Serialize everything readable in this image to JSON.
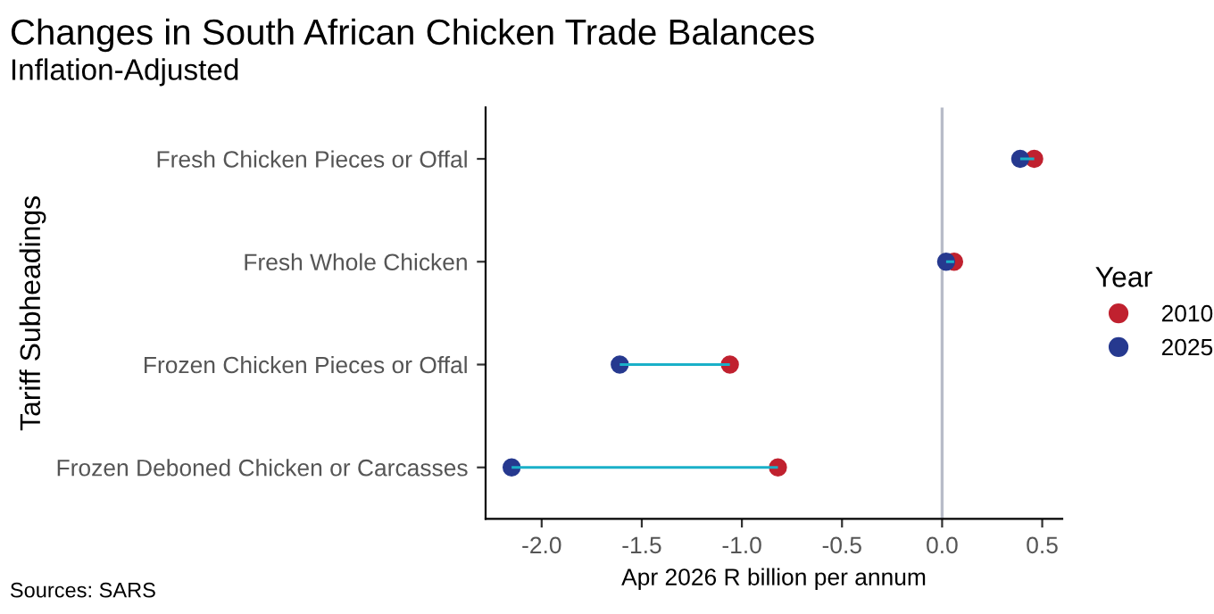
{
  "chart_data": {
    "type": "scatter",
    "orientation": "horizontal",
    "title": "Changes in South African Chicken Trade Balances",
    "subtitle": "Inflation-Adjusted",
    "xlabel": "Apr 2026 R billion per annum",
    "ylabel": "Tariff Subheadings",
    "legend_title": "Year",
    "legend": "right",
    "marker": "circle",
    "grid": false,
    "categories": [
      "Fresh Chicken Pieces or Offal",
      "Fresh Whole Chicken",
      "Frozen Chicken Pieces or Offal",
      "Frozen Deboned Chicken or Carcasses"
    ],
    "series": [
      {
        "type": "bar",
        "color": "#1ab0c8",
        "base": [
          0.39,
          0.02,
          -1.61,
          -2.15
        ],
        "values": [
          0.07,
          0.04,
          0.55,
          1.33
        ]
      },
      {
        "name": "2010",
        "color": "#c0212f",
        "values": [
          0.46,
          0.06,
          -1.06,
          -0.82
        ]
      },
      {
        "name": "2025",
        "color": "#26398f",
        "values": [
          0.39,
          0.02,
          -1.61,
          -2.15
        ]
      }
    ],
    "xlim": [
      -2.28,
      0.6
    ],
    "xticks": [
      {
        "value": -2.0,
        "label": "-2.0"
      },
      {
        "value": -1.5,
        "label": "-1.5"
      },
      {
        "value": -1.0,
        "label": "-1.0"
      },
      {
        "value": -0.5,
        "label": "-0.5"
      },
      {
        "value": 0.0,
        "label": "0.0"
      },
      {
        "value": 0.5,
        "label": "0.5"
      }
    ],
    "ref_lines": [
      {
        "axis": "x",
        "value": 0,
        "color": "#b8bcc8"
      }
    ],
    "annotations": [
      "Sources: SARS"
    ]
  }
}
